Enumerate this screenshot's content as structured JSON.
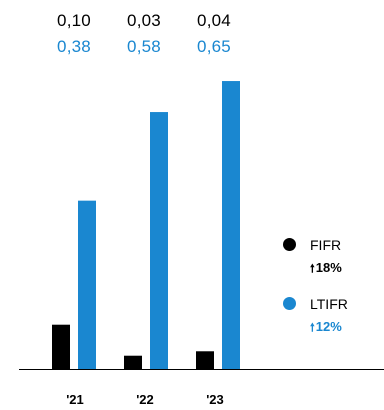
{
  "chart_data": {
    "type": "bar",
    "categories": [
      "'21",
      "'22",
      "'23"
    ],
    "series": [
      {
        "name": "FIFR",
        "values": [
          0.1,
          0.03,
          0.04
        ],
        "labels": [
          "0,10",
          "0,03",
          "0,04"
        ],
        "color": "#000000"
      },
      {
        "name": "LTIFR",
        "values": [
          0.38,
          0.58,
          0.65
        ],
        "labels": [
          "0,38",
          "0,58",
          "0,65"
        ],
        "color": "#1a87d0"
      }
    ],
    "ylim": [
      0,
      0.7
    ],
    "legend": {
      "placement": "right",
      "items": [
        {
          "name": "FIFR",
          "change": "18%",
          "change_color": "#000000"
        },
        {
          "name": "LTIFR",
          "change": "12%",
          "change_color": "#1a87d0"
        }
      ]
    },
    "title": "",
    "xlabel": "",
    "ylabel": ""
  }
}
